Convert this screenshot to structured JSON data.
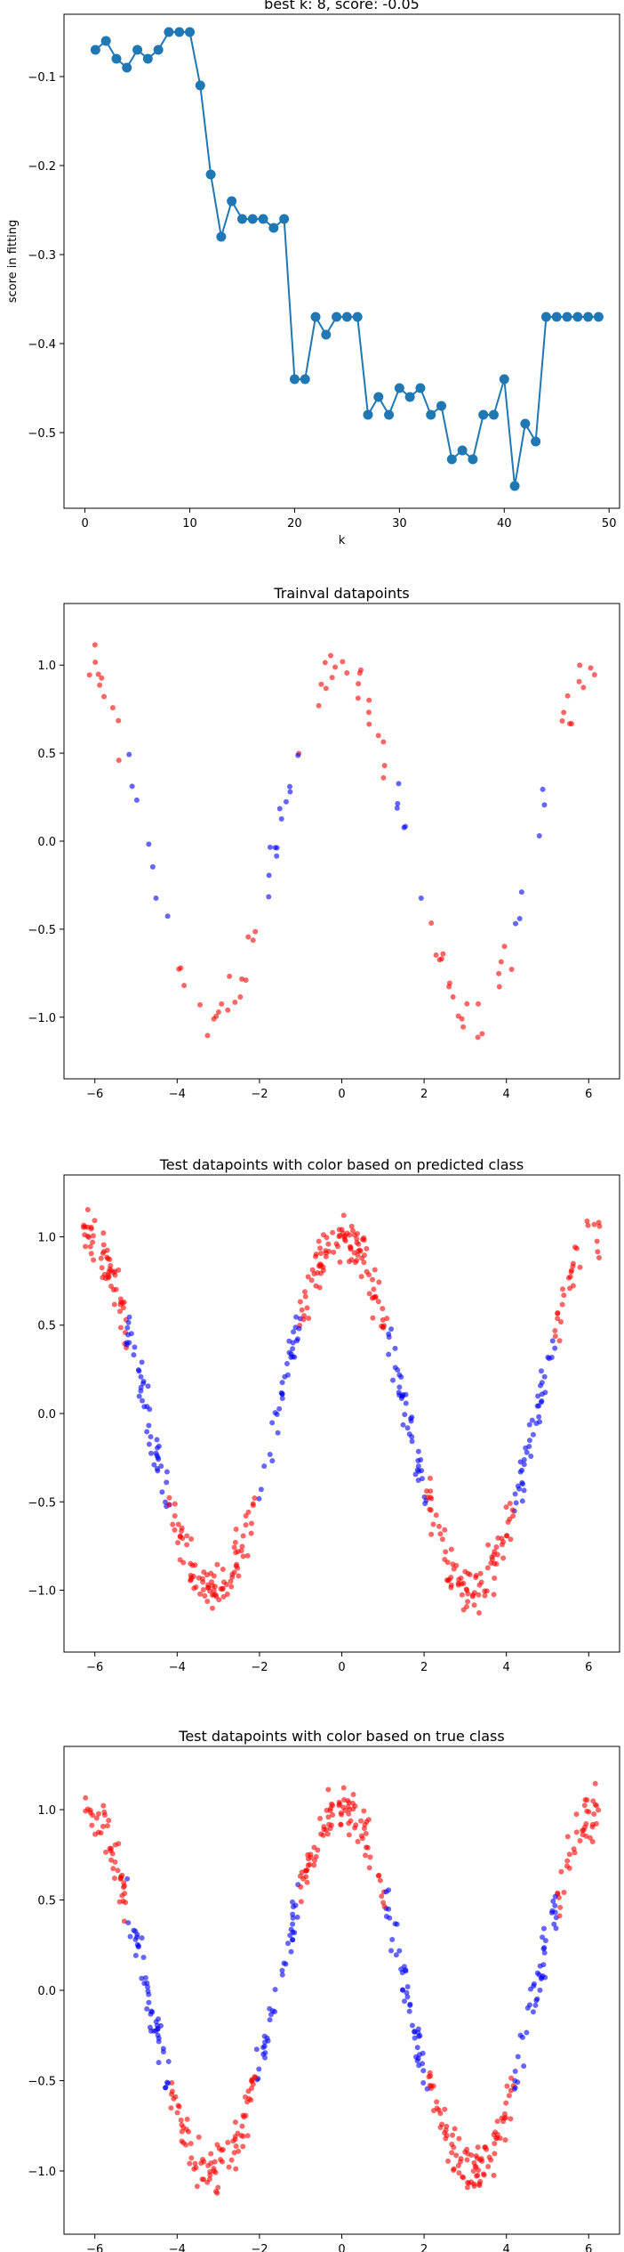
{
  "figure": {
    "colors": {
      "line": "#1f77b4",
      "class_pos": "#ff0000",
      "class_neg": "#0000ff"
    }
  },
  "chart_data": [
    {
      "type": "line",
      "title": "best k: 8, score: -0.05",
      "xlabel": "k",
      "ylabel": "score in fitting",
      "xlim": [
        -2,
        51
      ],
      "ylim": [
        -0.585,
        -0.03
      ],
      "xticks": [
        0,
        10,
        20,
        30,
        40,
        50
      ],
      "yticks": [
        -0.1,
        -0.2,
        -0.3,
        -0.4,
        -0.5
      ],
      "yticks_labels": [
        "−0.1",
        "−0.2",
        "−0.3",
        "−0.4",
        "−0.5"
      ],
      "grid": false,
      "series": [
        {
          "x": [
            1,
            2,
            3,
            4,
            5,
            6,
            7,
            8,
            9,
            10,
            11,
            12,
            13,
            14,
            15,
            16,
            17,
            18,
            19,
            20,
            21,
            22,
            23,
            24,
            25,
            26,
            27,
            28,
            29,
            30,
            31,
            32,
            33,
            34,
            35,
            36,
            37,
            38,
            39,
            40,
            41,
            42,
            43,
            44,
            45,
            46,
            47,
            48,
            49
          ],
          "values": [
            -0.07,
            -0.06,
            -0.08,
            -0.09,
            -0.07,
            -0.08,
            -0.07,
            -0.05,
            -0.05,
            -0.05,
            -0.11,
            -0.21,
            -0.28,
            -0.24,
            -0.26,
            -0.26,
            -0.26,
            -0.27,
            -0.26,
            -0.44,
            -0.44,
            -0.37,
            -0.39,
            -0.37,
            -0.37,
            -0.37,
            -0.48,
            -0.46,
            -0.48,
            -0.45,
            -0.46,
            -0.45,
            -0.48,
            -0.47,
            -0.53,
            -0.52,
            -0.53,
            -0.48,
            -0.48,
            -0.44,
            -0.56,
            -0.49,
            -0.51,
            -0.37,
            -0.37,
            -0.37,
            -0.37,
            -0.37,
            -0.37
          ]
        }
      ]
    },
    {
      "type": "scatter",
      "title": "Trainval datapoints",
      "xlim": [
        -6.75,
        6.75
      ],
      "ylim": [
        -1.35,
        1.35
      ],
      "xticks": [
        -6,
        -4,
        -2,
        0,
        2,
        4,
        6
      ],
      "xticks_labels": [
        "−6",
        "−4",
        "−2",
        "0",
        "2",
        "4",
        "6"
      ],
      "yticks": [
        1.0,
        0.5,
        0.0,
        -0.5,
        -1.0
      ],
      "yticks_labels": [
        "1.0",
        "0.5",
        "0.0",
        "−0.5",
        "−1.0"
      ],
      "grid": false,
      "n_points": 110,
      "seed": 11,
      "noise": 0.1,
      "classes": "true"
    },
    {
      "type": "scatter",
      "title": "Test datapoints with color based on predicted class",
      "xlim": [
        -6.75,
        6.75
      ],
      "ylim": [
        -1.35,
        1.35
      ],
      "xticks": [
        -6,
        -4,
        -2,
        0,
        2,
        4,
        6
      ],
      "xticks_labels": [
        "−6",
        "−4",
        "−2",
        "0",
        "2",
        "4",
        "6"
      ],
      "yticks": [
        1.0,
        0.5,
        0.0,
        -0.5,
        -1.0
      ],
      "yticks_labels": [
        "1.0",
        "0.5",
        "0.0",
        "−0.5",
        "−1.0"
      ],
      "grid": false,
      "n_points": 520,
      "seed": 23,
      "noise": 0.1,
      "classes": "predicted"
    },
    {
      "type": "scatter",
      "title": "Test datapoints with color based on true class",
      "xlim": [
        -6.75,
        6.75
      ],
      "ylim": [
        -1.35,
        1.35
      ],
      "xticks": [
        -6,
        -4,
        -2,
        0,
        2,
        4,
        6
      ],
      "xticks_labels": [
        "−6",
        "−4",
        "−2",
        "0",
        "2",
        "4",
        "6"
      ],
      "yticks": [
        1.0,
        0.5,
        0.0,
        -0.5,
        -1.0
      ],
      "yticks_labels": [
        "1.0",
        "0.5",
        "0.0",
        "−0.5",
        "−1.0"
      ],
      "grid": false,
      "n_points": 520,
      "seed": 23,
      "noise": 0.1,
      "classes": "true"
    }
  ]
}
